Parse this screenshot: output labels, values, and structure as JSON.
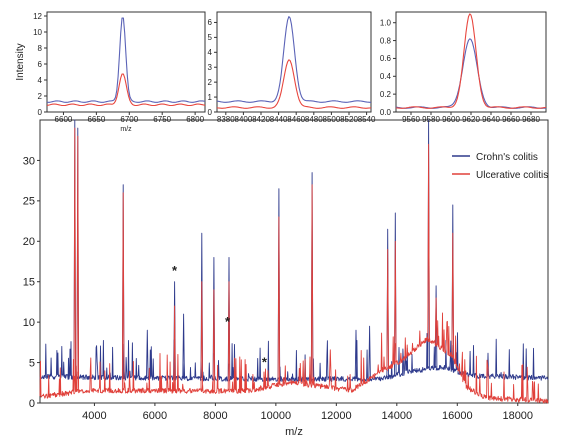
{
  "chart_data": [
    {
      "type": "line",
      "panel": "main",
      "xlabel": "m/z",
      "ylabel": "",
      "xlim": [
        2200,
        19000
      ],
      "ylim": [
        0,
        35
      ],
      "x_ticks": [
        4000,
        6000,
        8000,
        10000,
        12000,
        14000,
        16000,
        18000
      ],
      "y_ticks": [
        0,
        5,
        10,
        15,
        20,
        25,
        30
      ],
      "legend_position": "top-right",
      "series": [
        {
          "name": "Crohn's colitis",
          "color": "#2e3a8c",
          "baseline": [
            [
              2200,
              3.3
            ],
            [
              9000,
              3.0
            ],
            [
              13500,
              3.0
            ],
            [
              14500,
              4.0
            ],
            [
              15500,
              4.5
            ],
            [
              16500,
              3.4
            ],
            [
              19000,
              3.1
            ]
          ],
          "peaks": [
            [
              3350,
              35
            ],
            [
              3450,
              34
            ],
            [
              4950,
              27
            ],
            [
              5750,
              9
            ],
            [
              6650,
              15
            ],
            [
              6950,
              11
            ],
            [
              7550,
              21
            ],
            [
              7950,
              18
            ],
            [
              8450,
              18
            ],
            [
              10100,
              26.5
            ],
            [
              11200,
              28.5
            ],
            [
              12650,
              9
            ],
            [
              13100,
              9.5
            ],
            [
              13700,
              21.5
            ],
            [
              13950,
              23.5
            ],
            [
              15050,
              35
            ],
            [
              15300,
              14.5
            ],
            [
              15850,
              24.5
            ]
          ]
        },
        {
          "name": "Ulcerative colitis",
          "color": "#e0403a",
          "baseline": [
            [
              2200,
              0.8
            ],
            [
              3800,
              1.6
            ],
            [
              9000,
              1.5
            ],
            [
              10500,
              2.6
            ],
            [
              12500,
              1.6
            ],
            [
              13300,
              3.5
            ],
            [
              14200,
              5.4
            ],
            [
              15000,
              8
            ],
            [
              15800,
              6
            ],
            [
              16300,
              2
            ],
            [
              17000,
              0.6
            ],
            [
              19000,
              0.3
            ]
          ],
          "peaks": [
            [
              3350,
              34
            ],
            [
              3450,
              33
            ],
            [
              4950,
              26
            ],
            [
              6650,
              12
            ],
            [
              7550,
              15
            ],
            [
              7950,
              14
            ],
            [
              8450,
              15
            ],
            [
              10100,
              23
            ],
            [
              11200,
              27
            ],
            [
              13700,
              19
            ],
            [
              13950,
              20
            ],
            [
              15050,
              32
            ],
            [
              15300,
              13
            ],
            [
              15850,
              21
            ]
          ]
        }
      ],
      "annotations": [
        {
          "text": "*",
          "x": 6650,
          "y": 15.8
        },
        {
          "text": "*",
          "x": 8400,
          "y": 9.5
        },
        {
          "text": "*",
          "x": 9620,
          "y": 4.5
        }
      ]
    },
    {
      "type": "line",
      "panel": "inset-1",
      "xlabel": "m/z",
      "ylabel": "Intensity",
      "xlim": [
        6575,
        6815
      ],
      "ylim": [
        0,
        12.5
      ],
      "x_ticks": [
        6600,
        6650,
        6700,
        6750,
        6800
      ],
      "y_ticks": [
        0,
        2,
        4,
        6,
        8,
        10,
        12
      ],
      "series": [
        {
          "name": "Crohn's colitis",
          "color": "#5b63b7",
          "baseline": 1.3,
          "peak_x": 6690,
          "peak_y": 12.0,
          "width": 4.5
        },
        {
          "name": "Ulcerative colitis",
          "color": "#e8473f",
          "baseline": 0.9,
          "peak_x": 6690,
          "peak_y": 4.8,
          "width": 5.5
        }
      ]
    },
    {
      "type": "line",
      "panel": "inset-2",
      "xlabel": "",
      "ylabel": "",
      "xlim": [
        8370,
        8545
      ],
      "ylim": [
        0,
        6.7
      ],
      "x_ticks": [
        8380,
        8400,
        8420,
        8440,
        8460,
        8480,
        8500,
        8520,
        8540
      ],
      "y_ticks": [
        0,
        1,
        2,
        3,
        4,
        5,
        6
      ],
      "series": [
        {
          "name": "Crohn's colitis",
          "color": "#5b63b7",
          "baseline": 0.7,
          "peak_x": 8452,
          "peak_y": 6.4,
          "width": 6
        },
        {
          "name": "Ulcerative colitis",
          "color": "#e8473f",
          "baseline": 0.3,
          "peak_x": 8452,
          "peak_y": 3.5,
          "width": 6
        }
      ]
    },
    {
      "type": "line",
      "panel": "inset-3",
      "xlabel": "",
      "ylabel": "",
      "xlim": [
        9545,
        9695
      ],
      "ylim": [
        0,
        1.12
      ],
      "x_ticks": [
        9560,
        9580,
        9600,
        9620,
        9640,
        9660,
        9680
      ],
      "y_ticks": [
        0.0,
        0.2,
        0.4,
        0.6,
        0.8,
        1.0
      ],
      "tick_decimals": 1,
      "series": [
        {
          "name": "Crohn's colitis",
          "color": "#5b63b7",
          "baseline": 0.05,
          "peak_x": 9619,
          "peak_y": 0.82,
          "width": 7
        },
        {
          "name": "Ulcerative colitis",
          "color": "#e8473f",
          "baseline": 0.05,
          "peak_x": 9619,
          "peak_y": 1.1,
          "width": 6
        }
      ]
    }
  ]
}
